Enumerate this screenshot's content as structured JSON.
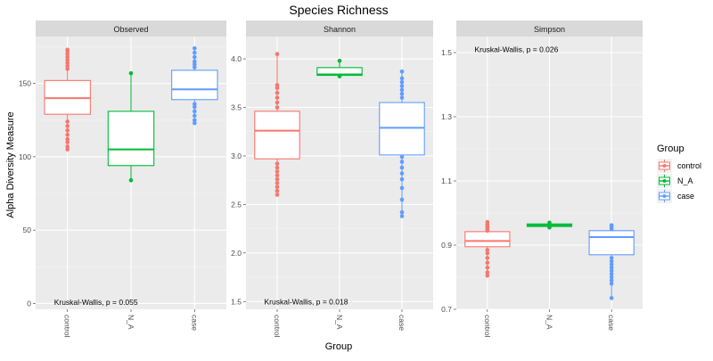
{
  "title": "Species Richness",
  "xlabel": "Group",
  "ylabel": "Alpha Diversity Measure",
  "legend": {
    "title": "Group",
    "items": [
      {
        "label": "control",
        "color": "#F8766D"
      },
      {
        "label": "N_A",
        "color": "#00BA38"
      },
      {
        "label": "case",
        "color": "#619CFF"
      }
    ]
  },
  "chart_data": {
    "type": "boxplot",
    "categories": [
      "control",
      "N_A",
      "case"
    ],
    "colors": {
      "control": "#F8766D",
      "N_A": "#00BA38",
      "case": "#619CFF"
    },
    "legend_position": "right",
    "grid": true,
    "panels": [
      {
        "name": "Observed",
        "annotation": "Kruskal-Wallis, p = 0.055",
        "annotation_pos": [
          0.5,
          1
        ],
        "ylim": [
          -4,
          182
        ],
        "yticks": [
          0,
          50,
          100,
          150
        ],
        "ytick_labels": [
          "0",
          "50",
          "100",
          "150"
        ],
        "groups": [
          {
            "name": "control",
            "min": 105,
            "q1": 129,
            "median": 140,
            "q3": 152,
            "max": 173,
            "points": [
              105,
              107,
              110,
              112,
              115,
              118,
              121,
              124,
              160,
              162,
              164,
              166,
              168,
              170,
              172,
              173
            ]
          },
          {
            "name": "N_A",
            "min": 84,
            "q1": 94,
            "median": 105,
            "q3": 131,
            "max": 157,
            "points": [
              84,
              157
            ]
          },
          {
            "name": "case",
            "min": 123,
            "q1": 139,
            "median": 146,
            "q3": 159,
            "max": 174,
            "points": [
              123,
              125,
              128,
              131,
              134,
              136,
              161,
              163,
              165,
              168,
              171,
              174
            ]
          }
        ]
      },
      {
        "name": "Shannon",
        "annotation": "Kruskal-Wallis, p = 0.018",
        "annotation_pos": [
          0.5,
          1.5
        ],
        "ylim": [
          1.42,
          4.23
        ],
        "yticks": [
          1.5,
          2.0,
          2.5,
          3.0,
          3.5,
          4.0
        ],
        "ytick_labels": [
          "1.5",
          "2.0",
          "2.5",
          "3.0",
          "3.5",
          "4.0"
        ],
        "groups": [
          {
            "name": "control",
            "min": 2.6,
            "q1": 2.97,
            "median": 3.26,
            "q3": 3.46,
            "max": 4.05,
            "points": [
              2.6,
              2.64,
              2.68,
              2.72,
              2.76,
              2.8,
              2.84,
              2.88,
              2.92,
              3.5,
              3.55,
              3.6,
              3.65,
              3.7,
              3.73,
              4.05
            ]
          },
          {
            "name": "N_A",
            "min": 3.82,
            "q1": 3.83,
            "median": 3.84,
            "q3": 3.91,
            "max": 3.98,
            "points": [
              3.82,
              3.98
            ]
          },
          {
            "name": "case",
            "min": 2.38,
            "q1": 3.01,
            "median": 3.29,
            "q3": 3.55,
            "max": 3.87,
            "points": [
              2.38,
              2.42,
              2.55,
              2.67,
              2.76,
              2.82,
              2.88,
              2.94,
              2.99,
              3.6,
              3.64,
              3.68,
              3.72,
              3.76,
              3.8,
              3.87
            ]
          }
        ]
      },
      {
        "name": "Simpson",
        "annotation": "Kruskal-Wallis, p = 0.026",
        "annotation_pos": [
          0.5,
          1.51
        ],
        "ylim": [
          0.7,
          1.55
        ],
        "yticks": [
          0.7,
          0.9,
          1.1,
          1.3,
          1.5
        ],
        "ytick_labels": [
          "0.7",
          "0.9",
          "1.1",
          "1.3",
          "1.5"
        ],
        "groups": [
          {
            "name": "control",
            "min": 0.805,
            "q1": 0.895,
            "median": 0.913,
            "q3": 0.942,
            "max": 0.972,
            "points": [
              0.805,
              0.815,
              0.83,
              0.845,
              0.86,
              0.875,
              0.885,
              0.945,
              0.95,
              0.955,
              0.96,
              0.965,
              0.972
            ]
          },
          {
            "name": "N_A",
            "min": 0.955,
            "q1": 0.958,
            "median": 0.962,
            "q3": 0.966,
            "max": 0.97,
            "points": [
              0.955,
              0.97
            ]
          },
          {
            "name": "case",
            "min": 0.735,
            "q1": 0.87,
            "median": 0.925,
            "q3": 0.945,
            "max": 0.962,
            "points": [
              0.735,
              0.78,
              0.79,
              0.8,
              0.81,
              0.82,
              0.83,
              0.84,
              0.85,
              0.86,
              0.95,
              0.955,
              0.96,
              0.962
            ]
          }
        ]
      }
    ]
  }
}
